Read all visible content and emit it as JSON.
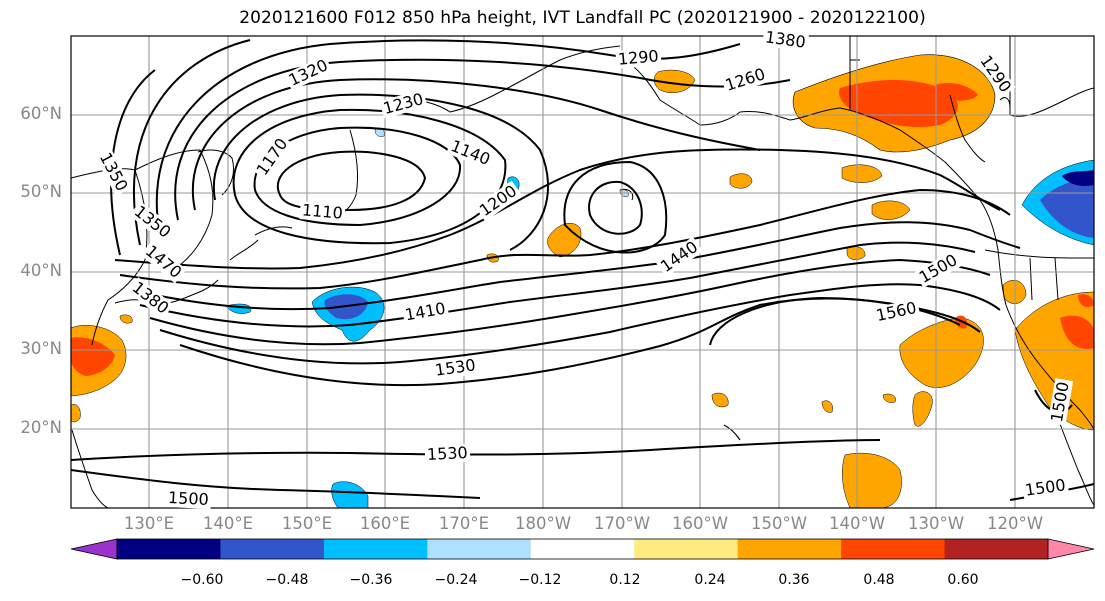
{
  "title": "2020121600 F012 850 hPa height, IVT Landfall PC (2020121900 - 2020122100)",
  "lat_labels": [
    "60°N",
    "50°N",
    "40°N",
    "30°N",
    "20°N"
  ],
  "lon_labels": [
    "130°E",
    "140°E",
    "150°E",
    "160°E",
    "170°E",
    "180°W",
    "170°W",
    "160°W",
    "150°W",
    "140°W",
    "130°W",
    "120°W"
  ],
  "contour_labels": [
    "1350",
    "1290",
    "1380",
    "1320",
    "1260",
    "1230",
    "1290",
    "1170",
    "1140",
    "1110",
    "1200",
    "1350",
    "1380",
    "1440",
    "1500",
    "1410",
    "1560",
    "1530",
    "1530",
    "1500",
    "1500",
    "1500",
    "1470"
  ],
  "colorbar": {
    "colors": [
      "#9933cc",
      "#000080",
      "#3355cc",
      "#00bfff",
      "#b0e0ff",
      "#ffffff",
      "#ffeb80",
      "#ffa500",
      "#ff4500",
      "#b22222",
      "#ff88aa"
    ],
    "tick_labels": [
      "−0.60",
      "−0.48",
      "−0.36",
      "−0.24",
      "−0.12",
      "0.12",
      "0.24",
      "0.36",
      "0.48",
      "0.60"
    ]
  }
}
